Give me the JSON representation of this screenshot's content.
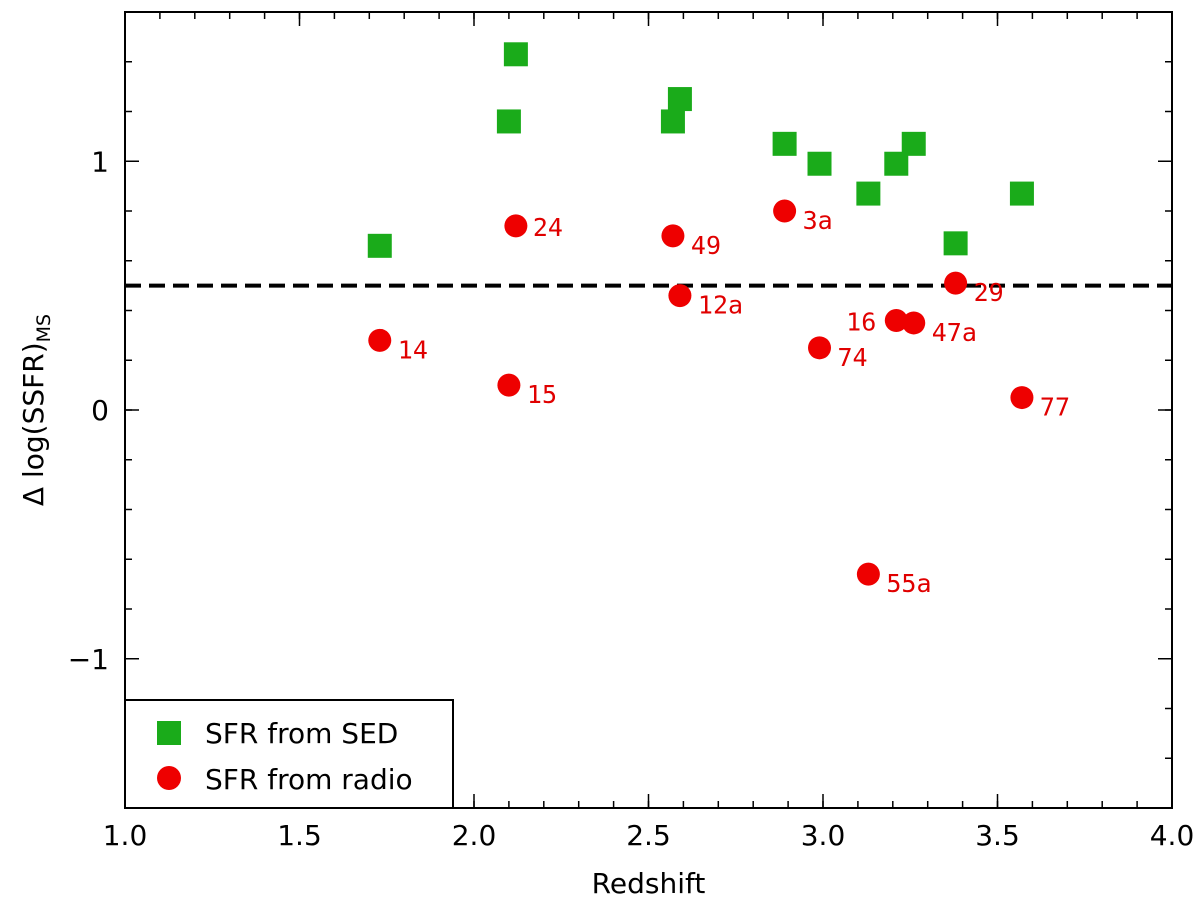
{
  "chart_data": {
    "type": "scatter",
    "title": "",
    "xlabel": "Redshift",
    "ylabel_main": "Δ log(SSFR)",
    "ylabel_sub": "MS",
    "xlim": [
      1.0,
      4.0
    ],
    "ylim": [
      -1.6,
      1.6
    ],
    "xticks": [
      1.0,
      1.5,
      2.0,
      2.5,
      3.0,
      3.5,
      4.0
    ],
    "xtick_labels": [
      "1.0",
      "1.5",
      "2.0",
      "2.5",
      "3.0",
      "3.5",
      "4.0"
    ],
    "yticks": [
      -1,
      0,
      1
    ],
    "ytick_labels": [
      "−1",
      "0",
      "1"
    ],
    "x_minor_step": 0.1,
    "y_minor_step": 0.2,
    "reference_line": {
      "y": 0.5,
      "style": "dashed",
      "color": "#000000"
    },
    "legend": {
      "position": "bottom-left"
    },
    "series": [
      {
        "name": "SFR from SED",
        "marker": "square",
        "color": "#1aab1a",
        "points": [
          {
            "x": 1.73,
            "y": 0.66
          },
          {
            "x": 2.1,
            "y": 1.16
          },
          {
            "x": 2.12,
            "y": 1.43
          },
          {
            "x": 2.57,
            "y": 1.16
          },
          {
            "x": 2.59,
            "y": 1.25
          },
          {
            "x": 2.89,
            "y": 1.07
          },
          {
            "x": 2.99,
            "y": 0.99
          },
          {
            "x": 3.13,
            "y": 0.87
          },
          {
            "x": 3.21,
            "y": 0.99
          },
          {
            "x": 3.26,
            "y": 1.07
          },
          {
            "x": 3.38,
            "y": 0.67
          },
          {
            "x": 3.57,
            "y": 0.87
          }
        ]
      },
      {
        "name": "SFR from radio",
        "marker": "circle",
        "color": "#ee0000",
        "points": [
          {
            "x": 1.73,
            "y": 0.28,
            "label": "14",
            "anchor": "right-below"
          },
          {
            "x": 2.1,
            "y": 0.1,
            "label": "15",
            "anchor": "right-below"
          },
          {
            "x": 2.12,
            "y": 0.74,
            "label": "24",
            "anchor": "right"
          },
          {
            "x": 2.57,
            "y": 0.7,
            "label": "49",
            "anchor": "right-below"
          },
          {
            "x": 2.59,
            "y": 0.46,
            "label": "12a",
            "anchor": "right-below"
          },
          {
            "x": 2.89,
            "y": 0.8,
            "label": "3a",
            "anchor": "right-below"
          },
          {
            "x": 2.99,
            "y": 0.25,
            "label": "74",
            "anchor": "right-below"
          },
          {
            "x": 3.13,
            "y": -0.66,
            "label": "55a",
            "anchor": "right-below"
          },
          {
            "x": 3.21,
            "y": 0.36,
            "label": "16",
            "anchor": "left"
          },
          {
            "x": 3.26,
            "y": 0.35,
            "label": "47a",
            "anchor": "right-below"
          },
          {
            "x": 3.38,
            "y": 0.51,
            "label": "29",
            "anchor": "right-below"
          },
          {
            "x": 3.57,
            "y": 0.05,
            "label": "77",
            "anchor": "right-below"
          }
        ]
      }
    ]
  }
}
